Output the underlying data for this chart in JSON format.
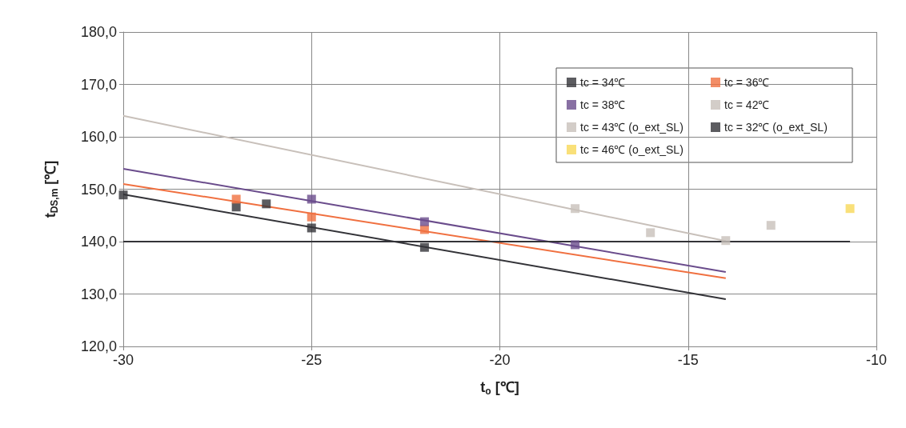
{
  "chart_data": {
    "type": "scatter",
    "xlabel": "t$_{o}$ [℃]",
    "ylabel": "t$_{DS,m}$ [℃]",
    "xlim": [
      -30,
      -10
    ],
    "xticks": [
      -30,
      -25,
      -20,
      -15,
      -10
    ],
    "ylim": [
      120,
      180
    ],
    "yticks": [
      {
        "value": 120,
        "label": "120,0"
      },
      {
        "value": 130,
        "label": "130,0"
      },
      {
        "value": 140,
        "label": "140,0"
      },
      {
        "value": 150,
        "label": "150,0"
      },
      {
        "value": 160,
        "label": "160,0"
      },
      {
        "value": 170,
        "label": "170,0"
      },
      {
        "value": 180,
        "label": "180,0"
      }
    ],
    "grid": true,
    "legend": "top right",
    "marker": "square",
    "series": [
      {
        "name": "tc = 34℃",
        "color": "#333338",
        "x": [
          -30,
          -27,
          -25,
          -22
        ],
        "values": [
          148.9,
          146.6,
          142.6,
          138.9
        ]
      },
      {
        "name": "tc = 36℃",
        "color": "#f07040",
        "x": [
          -27,
          -25,
          -22
        ],
        "values": [
          148.1,
          144.7,
          142.3
        ]
      },
      {
        "name": "tc = 38℃",
        "color": "#6a4c8c",
        "x": [
          -25,
          -22,
          -18
        ],
        "values": [
          148.1,
          143.8,
          139.4
        ]
      },
      {
        "name": "tc = 42℃",
        "color": "#c8c0ba",
        "x": [
          -18,
          -16,
          -14
        ],
        "values": [
          146.3,
          141.7,
          140.2
        ]
      },
      {
        "name": "tc = 43℃ (o_ext_SL)",
        "color": "#c8c0ba",
        "x": [
          -12.8
        ],
        "values": [
          143.1
        ]
      },
      {
        "name": "tc = 32℃ (o_ext_SL)",
        "color": "#333338",
        "x": [
          -26.2
        ],
        "values": [
          147.2
        ]
      },
      {
        "name": "tc = 46℃ (o_ext_SL)",
        "color": "#f8d858",
        "x": [
          -10.7
        ],
        "values": [
          146.3
        ]
      },
      {
        "type": "line",
        "marker": "none",
        "color": "#333338",
        "x": [
          -30,
          -14
        ],
        "values": [
          149.0,
          129.0
        ]
      },
      {
        "type": "line",
        "marker": "none",
        "color": "#f07040",
        "x": [
          -30,
          -14
        ],
        "values": [
          151.0,
          133.0
        ]
      },
      {
        "type": "line",
        "marker": "none",
        "color": "#6a4c8c",
        "x": [
          -30,
          -14
        ],
        "values": [
          153.9,
          134.2
        ]
      },
      {
        "type": "line",
        "marker": "none",
        "color": "#c8c0ba",
        "x": [
          -30,
          -14
        ],
        "values": [
          164.0,
          140.1
        ]
      },
      {
        "type": "line",
        "marker": "none",
        "color": "#333338",
        "x": [
          -30,
          -10.7
        ],
        "values": [
          140,
          140
        ]
      }
    ]
  }
}
